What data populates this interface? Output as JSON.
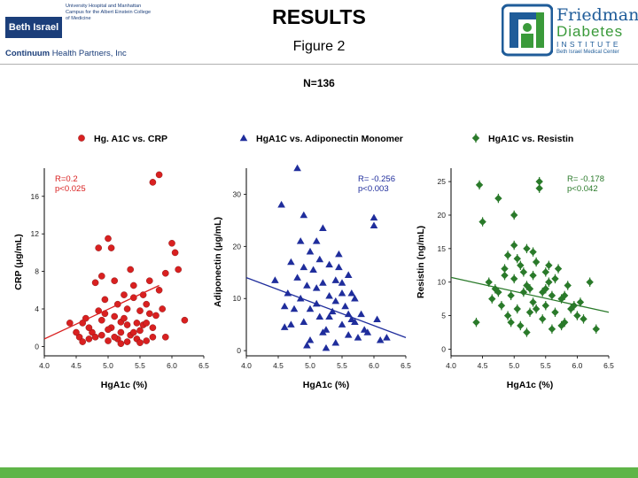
{
  "header": {
    "institution": "Beth Israel",
    "institution_desc": "University Hospital and Manhattan Campus for the Albert Einstein College of Medicine",
    "continuum_strong": "Continuum",
    "continuum_rest": " Health Partners, Inc",
    "title": "RESULTS",
    "figure": "Figure 2",
    "n_label": "N=136",
    "fdi_line1": "Friedman",
    "fdi_line2": "Diabetes",
    "fdi_line3": "INSTITUTE",
    "fdi_line4": "Beth Israel Medical Center"
  },
  "colors": {
    "red": "#d92020",
    "blue": "#1f2d9c",
    "green": "#2a7a2a",
    "band": "#5fb548",
    "brand_blue": "#1b3e7a"
  },
  "chart_data": [
    {
      "type": "scatter",
      "legend": "Hg. A1C vs. CRP",
      "marker": "circle",
      "color": "#d92020",
      "xlabel": "HgA1c (%)",
      "ylabel": "CRP (μg/mL)",
      "xlim": [
        4.0,
        6.5
      ],
      "ylim": [
        -1,
        19
      ],
      "xticks": [
        4.0,
        4.5,
        5.0,
        5.5,
        6.0,
        6.5
      ],
      "xtick_labels": [
        "4.0",
        "4.5",
        "5.0",
        "5.5",
        "6.0",
        "6.5"
      ],
      "yticks": [
        0,
        4,
        8,
        12,
        16
      ],
      "ytick_labels": [
        "0",
        "4",
        "8",
        "12",
        "16"
      ],
      "stats": [
        "R=0.2",
        "p<0.025"
      ],
      "trend": [
        [
          4.0,
          0.8
        ],
        [
          5.8,
          6.5
        ]
      ],
      "points": [
        [
          4.4,
          2.5
        ],
        [
          4.55,
          1.0
        ],
        [
          4.6,
          0.5
        ],
        [
          4.6,
          2.5
        ],
        [
          4.65,
          3.0
        ],
        [
          4.7,
          0.8
        ],
        [
          4.75,
          1.5
        ],
        [
          4.8,
          6.8
        ],
        [
          4.85,
          10.5
        ],
        [
          4.9,
          7.5
        ],
        [
          4.9,
          1.2
        ],
        [
          4.95,
          3.5
        ],
        [
          5.0,
          11.5
        ],
        [
          5.0,
          0.6
        ],
        [
          5.05,
          10.5
        ],
        [
          5.05,
          2.0
        ],
        [
          5.1,
          3.2
        ],
        [
          5.1,
          7.0
        ],
        [
          5.15,
          0.8
        ],
        [
          5.2,
          1.5
        ],
        [
          5.2,
          2.6
        ],
        [
          5.25,
          5.5
        ],
        [
          5.3,
          4.0
        ],
        [
          5.3,
          0.5
        ],
        [
          5.35,
          1.2
        ],
        [
          5.4,
          5.2
        ],
        [
          5.4,
          6.5
        ],
        [
          5.45,
          2.5
        ],
        [
          5.45,
          0.8
        ],
        [
          5.5,
          3.8
        ],
        [
          5.5,
          1.7
        ],
        [
          5.55,
          2.3
        ],
        [
          5.6,
          4.5
        ],
        [
          5.6,
          0.6
        ],
        [
          5.65,
          7.0
        ],
        [
          5.7,
          17.5
        ],
        [
          5.7,
          2.0
        ],
        [
          5.75,
          3.3
        ],
        [
          5.8,
          18.3
        ],
        [
          5.85,
          4.0
        ],
        [
          5.9,
          7.8
        ],
        [
          5.9,
          1.0
        ],
        [
          6.0,
          11.0
        ],
        [
          6.05,
          10.0
        ],
        [
          6.1,
          8.2
        ],
        [
          6.2,
          2.8
        ],
        [
          4.5,
          1.5
        ],
        [
          4.7,
          2.0
        ],
        [
          4.8,
          1.0
        ],
        [
          4.9,
          2.8
        ],
        [
          5.0,
          1.8
        ],
        [
          5.1,
          1.0
        ],
        [
          5.2,
          0.3
        ],
        [
          5.3,
          2.3
        ],
        [
          5.4,
          1.5
        ],
        [
          5.5,
          0.4
        ],
        [
          5.6,
          2.5
        ],
        [
          5.7,
          1.0
        ],
        [
          4.95,
          5.0
        ],
        [
          5.25,
          3.0
        ],
        [
          5.55,
          5.5
        ],
        [
          5.35,
          8.2
        ],
        [
          5.8,
          6.0
        ],
        [
          4.85,
          3.8
        ],
        [
          5.15,
          4.5
        ],
        [
          5.65,
          3.5
        ]
      ]
    },
    {
      "type": "scatter",
      "legend": "HgA1C vs. Adiponectin Monomer",
      "marker": "triangle",
      "color": "#1f2d9c",
      "xlabel": "HgA1c (%)",
      "ylabel": "Adiponectin (μg/mL)",
      "xlim": [
        4.0,
        6.5
      ],
      "ylim": [
        -1,
        35
      ],
      "xticks": [
        4.0,
        4.5,
        5.0,
        5.5,
        6.0,
        6.5
      ],
      "xtick_labels": [
        "4.0",
        "4.5",
        "5.0",
        "5.5",
        "6.0",
        "6.5"
      ],
      "yticks": [
        0,
        10,
        20,
        30
      ],
      "ytick_labels": [
        "0",
        "10",
        "20",
        "30"
      ],
      "stats": [
        "R= -0.256",
        "p<0.003"
      ],
      "trend": [
        [
          4.0,
          14.0
        ],
        [
          6.5,
          2.5
        ]
      ],
      "points": [
        [
          4.45,
          13.5
        ],
        [
          4.55,
          28.0
        ],
        [
          4.6,
          4.5
        ],
        [
          4.65,
          11.0
        ],
        [
          4.7,
          17.0
        ],
        [
          4.75,
          8.0
        ],
        [
          4.8,
          14.0
        ],
        [
          4.8,
          35.0
        ],
        [
          4.85,
          10.0
        ],
        [
          4.9,
          26.0
        ],
        [
          4.9,
          5.5
        ],
        [
          4.95,
          12.5
        ],
        [
          5.0,
          19.0
        ],
        [
          5.0,
          2.0
        ],
        [
          5.05,
          15.5
        ],
        [
          5.1,
          21.0
        ],
        [
          5.1,
          9.0
        ],
        [
          5.15,
          6.5
        ],
        [
          5.2,
          13.0
        ],
        [
          5.2,
          23.5
        ],
        [
          5.25,
          4.0
        ],
        [
          5.3,
          16.5
        ],
        [
          5.3,
          10.5
        ],
        [
          5.35,
          7.5
        ],
        [
          5.4,
          1.5
        ],
        [
          5.4,
          13.5
        ],
        [
          5.45,
          18.5
        ],
        [
          5.5,
          5.0
        ],
        [
          5.5,
          11.0
        ],
        [
          5.55,
          8.5
        ],
        [
          5.6,
          3.0
        ],
        [
          5.6,
          14.5
        ],
        [
          5.65,
          6.0
        ],
        [
          5.7,
          10.0
        ],
        [
          5.75,
          2.5
        ],
        [
          5.8,
          7.0
        ],
        [
          5.85,
          4.0
        ],
        [
          5.9,
          3.5
        ],
        [
          6.0,
          25.5
        ],
        [
          6.0,
          24.0
        ],
        [
          6.05,
          6.0
        ],
        [
          6.1,
          2.0
        ],
        [
          6.2,
          2.5
        ],
        [
          4.6,
          8.5
        ],
        [
          4.7,
          5.0
        ],
        [
          4.9,
          16.0
        ],
        [
          5.0,
          8.0
        ],
        [
          5.1,
          12.0
        ],
        [
          5.2,
          3.5
        ],
        [
          5.3,
          6.5
        ],
        [
          5.4,
          9.5
        ],
        [
          5.5,
          13.0
        ],
        [
          5.6,
          7.0
        ],
        [
          5.7,
          5.5
        ],
        [
          4.85,
          21.0
        ],
        [
          5.15,
          17.5
        ],
        [
          5.45,
          16.0
        ],
        [
          5.25,
          0.5
        ],
        [
          4.95,
          1.0
        ],
        [
          5.65,
          11.0
        ]
      ]
    },
    {
      "type": "scatter",
      "legend": "HgA1C vs. Resistin",
      "marker": "diamond",
      "color": "#2a7a2a",
      "xlabel": "HgA1c (%)",
      "ylabel": "Resistin (ng/mL)",
      "xlim": [
        4.0,
        6.5
      ],
      "ylim": [
        -1,
        27
      ],
      "xticks": [
        4.0,
        4.5,
        5.0,
        5.5,
        6.0,
        6.5
      ],
      "xtick_labels": [
        "4.0",
        "4.5",
        "5.0",
        "5.5",
        "6.0",
        "6.5"
      ],
      "yticks": [
        0,
        5,
        10,
        15,
        20,
        25
      ],
      "ytick_labels": [
        "0",
        "5",
        "10",
        "15",
        "20",
        "25"
      ],
      "stats": [
        "R= -0.178",
        "p<0.042"
      ],
      "trend": [
        [
          4.0,
          10.7
        ],
        [
          6.5,
          5.5
        ]
      ],
      "points": [
        [
          4.4,
          4.0
        ],
        [
          4.45,
          24.5
        ],
        [
          4.5,
          19.0
        ],
        [
          4.6,
          10.0
        ],
        [
          4.65,
          7.5
        ],
        [
          4.7,
          9.0
        ],
        [
          4.75,
          22.5
        ],
        [
          4.8,
          6.5
        ],
        [
          4.85,
          11.0
        ],
        [
          4.9,
          14.0
        ],
        [
          4.9,
          5.0
        ],
        [
          4.95,
          8.0
        ],
        [
          5.0,
          20.0
        ],
        [
          5.0,
          10.5
        ],
        [
          5.05,
          6.0
        ],
        [
          5.1,
          12.5
        ],
        [
          5.1,
          3.5
        ],
        [
          5.15,
          8.5
        ],
        [
          5.2,
          9.5
        ],
        [
          5.2,
          15.0
        ],
        [
          5.25,
          5.5
        ],
        [
          5.3,
          11.0
        ],
        [
          5.3,
          7.0
        ],
        [
          5.35,
          13.0
        ],
        [
          5.4,
          25.0
        ],
        [
          5.4,
          24.0
        ],
        [
          5.45,
          4.5
        ],
        [
          5.5,
          9.0
        ],
        [
          5.5,
          6.5
        ],
        [
          5.55,
          10.0
        ],
        [
          5.6,
          3.0
        ],
        [
          5.6,
          8.0
        ],
        [
          5.65,
          5.5
        ],
        [
          5.7,
          12.0
        ],
        [
          5.75,
          7.5
        ],
        [
          5.8,
          4.0
        ],
        [
          5.85,
          9.5
        ],
        [
          5.9,
          6.0
        ],
        [
          6.0,
          5.0
        ],
        [
          6.05,
          7.0
        ],
        [
          6.1,
          4.5
        ],
        [
          6.2,
          10.0
        ],
        [
          6.3,
          3.0
        ],
        [
          4.85,
          12.0
        ],
        [
          5.05,
          13.5
        ],
        [
          5.15,
          11.5
        ],
        [
          5.25,
          9.0
        ],
        [
          5.35,
          6.0
        ],
        [
          5.45,
          8.5
        ],
        [
          5.55,
          12.5
        ],
        [
          5.65,
          10.5
        ],
        [
          5.75,
          3.5
        ],
        [
          4.95,
          4.0
        ],
        [
          5.0,
          15.5
        ],
        [
          5.3,
          14.5
        ],
        [
          5.5,
          11.5
        ],
        [
          5.2,
          2.5
        ],
        [
          4.75,
          8.5
        ],
        [
          5.8,
          8.0
        ],
        [
          5.95,
          6.5
        ]
      ]
    }
  ]
}
